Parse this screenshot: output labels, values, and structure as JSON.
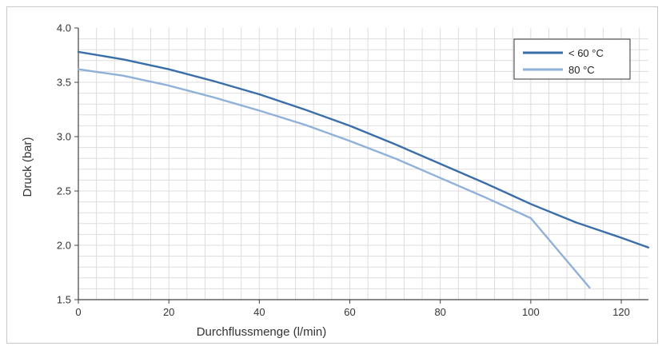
{
  "chart_data": {
    "type": "line",
    "title": "",
    "xlabel": "Durchflussmenge (l/min)",
    "ylabel": "Druck (bar)",
    "xlim": [
      0,
      126
    ],
    "ylim": [
      1.5,
      4.0
    ],
    "x_ticks": [
      "0",
      "20",
      "40",
      "60",
      "80",
      "100",
      "120"
    ],
    "y_ticks": [
      "1.5",
      "2.0",
      "2.5",
      "3.0",
      "3.5",
      "4.0"
    ],
    "grid": true,
    "legend_position": "top-right",
    "series": [
      {
        "name": "< 60 °C",
        "color": "#3a6ea8",
        "x": [
          0,
          10,
          20,
          30,
          40,
          50,
          60,
          70,
          80,
          90,
          100,
          110,
          120,
          126
        ],
        "y": [
          3.78,
          3.71,
          3.62,
          3.51,
          3.39,
          3.25,
          3.1,
          2.93,
          2.75,
          2.57,
          2.38,
          2.21,
          2.07,
          1.98
        ]
      },
      {
        "name": "80 °C",
        "color": "#8fb1d9",
        "x": [
          0,
          10,
          20,
          30,
          40,
          50,
          60,
          70,
          80,
          90,
          100,
          113
        ],
        "y": [
          3.62,
          3.56,
          3.47,
          3.36,
          3.24,
          3.11,
          2.96,
          2.8,
          2.62,
          2.44,
          2.25,
          1.61
        ]
      }
    ]
  }
}
